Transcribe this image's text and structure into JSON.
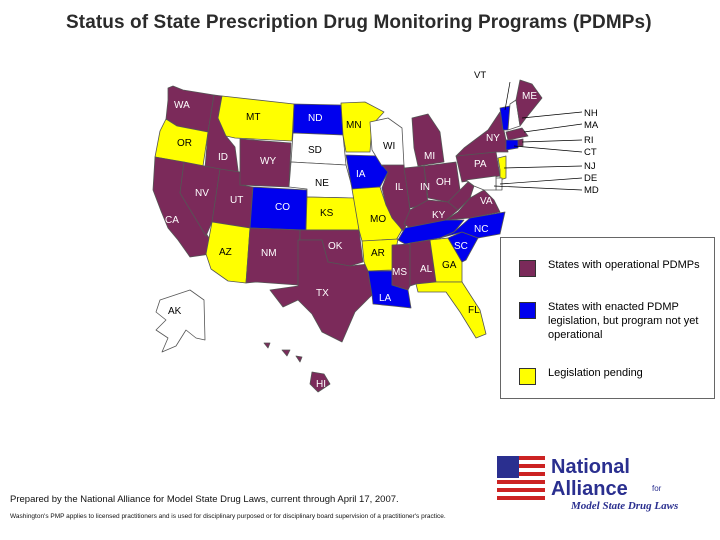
{
  "title": "Status of State Prescription Drug Monitoring Programs (PDMPs)",
  "colors": {
    "operational": "#7b2a5a",
    "enacted": "#0000ee",
    "pending": "#ffff00",
    "none": "#ffffff",
    "border": "#555555"
  },
  "states": {
    "WA": {
      "label": "WA",
      "status": "operational"
    },
    "OR": {
      "label": "OR",
      "status": "pending"
    },
    "CA": {
      "label": "CA",
      "status": "operational"
    },
    "ID": {
      "label": "ID",
      "status": "operational"
    },
    "NV": {
      "label": "NV",
      "status": "operational"
    },
    "UT": {
      "label": "UT",
      "status": "operational"
    },
    "AZ": {
      "label": "AZ",
      "status": "pending"
    },
    "MT": {
      "label": "MT",
      "status": "pending"
    },
    "WY": {
      "label": "WY",
      "status": "operational"
    },
    "CO": {
      "label": "CO",
      "status": "enacted"
    },
    "NM": {
      "label": "NM",
      "status": "operational"
    },
    "ND": {
      "label": "ND",
      "status": "enacted"
    },
    "SD": {
      "label": "SD",
      "status": "none"
    },
    "NE": {
      "label": "NE",
      "status": "none"
    },
    "KS": {
      "label": "KS",
      "status": "pending"
    },
    "OK": {
      "label": "OK",
      "status": "operational"
    },
    "TX": {
      "label": "TX",
      "status": "operational"
    },
    "MN": {
      "label": "MN",
      "status": "pending"
    },
    "IA": {
      "label": "IA",
      "status": "enacted"
    },
    "MO": {
      "label": "MO",
      "status": "pending"
    },
    "AR": {
      "label": "AR",
      "status": "pending"
    },
    "LA": {
      "label": "LA",
      "status": "enacted"
    },
    "WI": {
      "label": "WI",
      "status": "none"
    },
    "IL": {
      "label": "IL",
      "status": "operational"
    },
    "MI": {
      "label": "MI",
      "status": "operational"
    },
    "IN": {
      "label": "IN",
      "status": "operational"
    },
    "OH": {
      "label": "OH",
      "status": "operational"
    },
    "KY": {
      "label": "KY",
      "status": "operational"
    },
    "TN": {
      "label": "",
      "status": "enacted"
    },
    "MS": {
      "label": "MS",
      "status": "operational"
    },
    "AL": {
      "label": "AL",
      "status": "operational"
    },
    "GA": {
      "label": "GA",
      "status": "pending"
    },
    "FL": {
      "label": "FL",
      "status": "pending"
    },
    "SC": {
      "label": "SC",
      "status": "enacted"
    },
    "NC": {
      "label": "NC",
      "status": "enacted"
    },
    "VA": {
      "label": "VA",
      "status": "operational"
    },
    "WV": {
      "label": "",
      "status": "operational"
    },
    "PA": {
      "label": "PA",
      "status": "operational"
    },
    "NY": {
      "label": "NY",
      "status": "operational"
    },
    "VT": {
      "label": "VT",
      "status": "enacted"
    },
    "NH": {
      "label": "NH",
      "status": "none"
    },
    "ME": {
      "label": "ME",
      "status": "operational"
    },
    "MA": {
      "label": "MA",
      "status": "operational"
    },
    "RI": {
      "label": "RI",
      "status": "operational"
    },
    "CT": {
      "label": "CT",
      "status": "enacted"
    },
    "NJ": {
      "label": "NJ",
      "status": "pending"
    },
    "DE": {
      "label": "DE",
      "status": "none"
    },
    "MD": {
      "label": "MD",
      "status": "none"
    },
    "AK": {
      "label": "AK",
      "status": "none"
    },
    "HI": {
      "label": "HI",
      "status": "operational"
    }
  },
  "external_labels": [
    "VT",
    "NH",
    "MA",
    "RI",
    "CT",
    "NJ",
    "DE",
    "MD"
  ],
  "legend": [
    {
      "status": "operational",
      "text": "States with operational PDMPs"
    },
    {
      "status": "enacted",
      "text": "States with enacted PDMP legislation, but program not yet operational"
    },
    {
      "status": "pending",
      "text": "Legislation pending"
    }
  ],
  "logo": {
    "line1": "National",
    "line2": "Alliance",
    "for": "for",
    "line3": "Model State Drug Laws"
  },
  "footer": {
    "line1": "Prepared by the National Alliance for Model State Drug Laws, current through April 17, 2007.",
    "line2": "Washington's PMP applies to licensed practitioners and is used for disciplinary purposed or for disciplinary board supervision of a practitioner's practice."
  }
}
